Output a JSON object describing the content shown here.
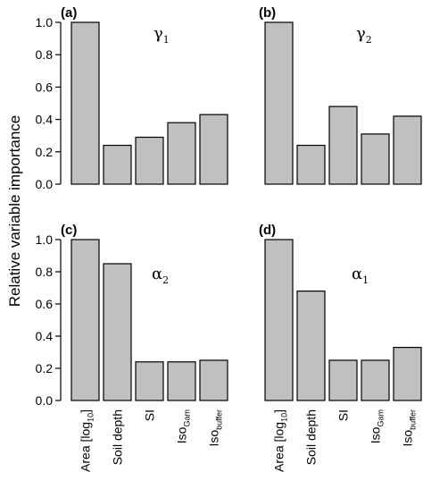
{
  "figure": {
    "ylabel": "Relative variable importance"
  },
  "colors": {
    "bar_fill": "#c0c0c0",
    "bar_stroke": "#000000",
    "axis": "#000000"
  },
  "chart_data": [
    {
      "type": "bar",
      "panel_label": "(a)",
      "title_symbol": "γ",
      "title_subscript": "1",
      "categories": [
        "Area [log10]",
        "Soil depth",
        "SI",
        "IsoGam",
        "Isobuffer"
      ],
      "values": [
        1.0,
        0.24,
        0.29,
        0.38,
        0.43
      ],
      "ylim": [
        0,
        1.0
      ],
      "yticks": [
        "0.0",
        "0.2",
        "0.4",
        "0.6",
        "0.8",
        "1.0"
      ],
      "grid": false
    },
    {
      "type": "bar",
      "panel_label": "(b)",
      "title_symbol": "γ",
      "title_subscript": "2",
      "categories": [
        "Area [log10]",
        "Soil depth",
        "SI",
        "IsoGam",
        "Isobuffer"
      ],
      "values": [
        1.0,
        0.24,
        0.48,
        0.31,
        0.42
      ],
      "ylim": [
        0,
        1.0
      ],
      "yticks": [],
      "grid": false
    },
    {
      "type": "bar",
      "panel_label": "(c)",
      "title_symbol": "α",
      "title_subscript": "2",
      "categories": [
        "Area [log10]",
        "Soil depth",
        "SI",
        "IsoGam",
        "Isobuffer"
      ],
      "values": [
        1.0,
        0.85,
        0.24,
        0.24,
        0.25
      ],
      "ylim": [
        0,
        1.0
      ],
      "yticks": [
        "0.0",
        "0.2",
        "0.4",
        "0.6",
        "0.8",
        "1.0"
      ],
      "grid": false
    },
    {
      "type": "bar",
      "panel_label": "(d)",
      "title_symbol": "α",
      "title_subscript": "1",
      "categories": [
        "Area [log10]",
        "Soil depth",
        "SI",
        "IsoGam",
        "Isobuffer"
      ],
      "values": [
        1.0,
        0.68,
        0.25,
        0.25,
        0.33
      ],
      "ylim": [
        0,
        1.0
      ],
      "yticks": [],
      "grid": false
    }
  ],
  "x_tick_labels": [
    {
      "main": "Area [log",
      "sub": "10",
      "tail": "]"
    },
    {
      "main": "Soil depth",
      "sub": "",
      "tail": ""
    },
    {
      "main": "SI",
      "sub": "",
      "tail": ""
    },
    {
      "main": "Iso",
      "sub": "Gam",
      "tail": ""
    },
    {
      "main": "Iso",
      "sub": "buffer",
      "tail": ""
    }
  ]
}
